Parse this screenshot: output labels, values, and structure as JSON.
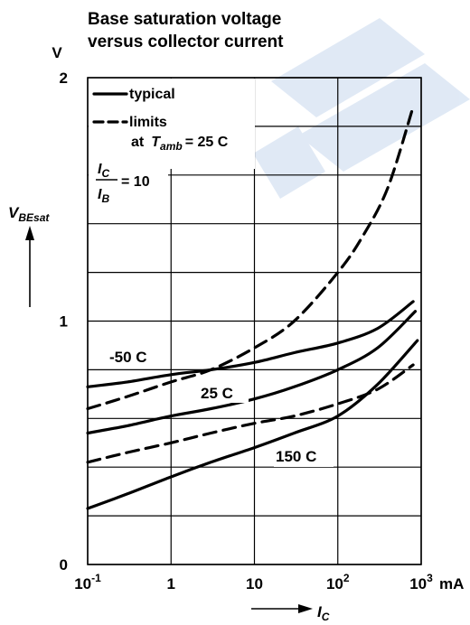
{
  "chart_data": {
    "type": "line",
    "title_lines": [
      "Base saturation voltage",
      "versus collector current"
    ],
    "ylabel": {
      "main": "V",
      "sub": "BEsat"
    },
    "y_unit": "V",
    "xlabel": {
      "main": "I",
      "sub": "C"
    },
    "x_unit": "mA",
    "x_scale": "log",
    "xlim": [
      0.1,
      1000
    ],
    "ylim": [
      0,
      2
    ],
    "grid": true,
    "x_ticks": [
      {
        "base": "10",
        "exp": "-1",
        "value": 0.1
      },
      {
        "base": "1",
        "exp": "",
        "value": 1
      },
      {
        "base": "10",
        "exp": "",
        "value": 10
      },
      {
        "base": "10",
        "exp": "2",
        "value": 100
      },
      {
        "base": "10",
        "exp": "3",
        "value": 1000
      }
    ],
    "y_ticks": [
      {
        "label": "0",
        "value": 0
      },
      {
        "label": "1",
        "value": 1
      },
      {
        "label": "2",
        "value": 2
      }
    ],
    "legend": {
      "typical": "typical",
      "limits": "limits",
      "condition_prefix": "at",
      "condition_var": "T",
      "condition_sub": "amb",
      "condition_value": "= 25  C",
      "ratio_num_var": "I",
      "ratio_num_sub": "C",
      "ratio_den_var": "I",
      "ratio_den_sub": "B",
      "ratio_value": "= 10"
    },
    "series": [
      {
        "label": "-50  C",
        "style": "solid",
        "x": [
          0.1,
          0.3,
          1,
          3,
          10,
          30,
          100,
          300,
          800
        ],
        "y": [
          0.73,
          0.75,
          0.78,
          0.8,
          0.83,
          0.87,
          0.91,
          0.97,
          1.08
        ]
      },
      {
        "label": "25  C",
        "style": "solid",
        "x": [
          0.1,
          0.3,
          1,
          3,
          10,
          30,
          100,
          300,
          850
        ],
        "y": [
          0.54,
          0.57,
          0.61,
          0.64,
          0.68,
          0.73,
          0.8,
          0.89,
          1.04
        ]
      },
      {
        "label": "150  C",
        "style": "solid",
        "x": [
          0.1,
          0.3,
          1,
          3,
          10,
          30,
          100,
          300,
          900
        ],
        "y": [
          0.23,
          0.29,
          0.36,
          0.42,
          0.48,
          0.54,
          0.61,
          0.74,
          0.92
        ]
      },
      {
        "style": "dashed",
        "x": [
          0.1,
          0.3,
          1,
          3,
          10,
          30,
          100,
          200,
          400,
          800
        ],
        "y": [
          0.64,
          0.69,
          0.75,
          0.8,
          0.89,
          1.0,
          1.2,
          1.35,
          1.55,
          1.88
        ]
      },
      {
        "style": "dashed",
        "x": [
          0.1,
          0.3,
          1,
          3,
          10,
          30,
          100,
          300,
          800
        ],
        "y": [
          0.42,
          0.46,
          0.5,
          0.54,
          0.58,
          0.61,
          0.66,
          0.72,
          0.82
        ]
      }
    ]
  }
}
